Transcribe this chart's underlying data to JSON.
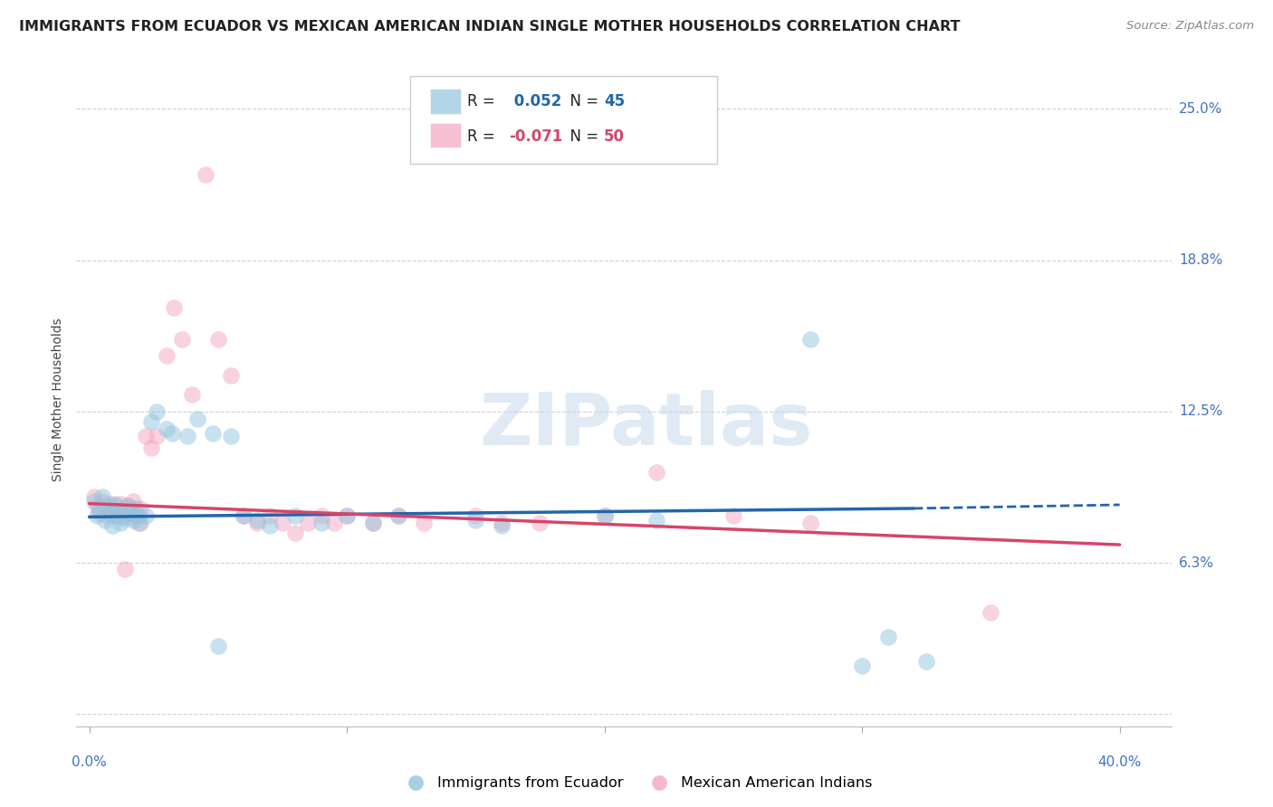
{
  "title": "IMMIGRANTS FROM ECUADOR VS MEXICAN AMERICAN INDIAN SINGLE MOTHER HOUSEHOLDS CORRELATION CHART",
  "source": "Source: ZipAtlas.com",
  "ylabel": "Single Mother Households",
  "ytick_vals": [
    0.0,
    0.0625,
    0.125,
    0.1875,
    0.25
  ],
  "ytick_labels": [
    "",
    "6.3%",
    "12.5%",
    "18.8%",
    "25.0%"
  ],
  "xtick_vals": [
    0.0,
    0.1,
    0.2,
    0.3,
    0.4
  ],
  "xtick_labels": [
    "0.0%",
    "",
    "",
    "",
    "40.0%"
  ],
  "xlim": [
    -0.005,
    0.42
  ],
  "ylim": [
    -0.005,
    0.265
  ],
  "R_blue": 0.052,
  "N_blue": 45,
  "R_pink": -0.071,
  "N_pink": 50,
  "legend_label_blue": "Immigrants from Ecuador",
  "legend_label_pink": "Mexican American Indians",
  "watermark": "ZIPatlas",
  "blue_color": "#92c5de",
  "pink_color": "#f4a6c0",
  "blue_line_color": "#2166ac",
  "pink_line_color": "#d6456a",
  "blue_scatter": [
    [
      0.002,
      0.088
    ],
    [
      0.003,
      0.082
    ],
    [
      0.004,
      0.085
    ],
    [
      0.005,
      0.09
    ],
    [
      0.006,
      0.08
    ],
    [
      0.007,
      0.086
    ],
    [
      0.008,
      0.083
    ],
    [
      0.009,
      0.078
    ],
    [
      0.01,
      0.087
    ],
    [
      0.011,
      0.082
    ],
    [
      0.012,
      0.079
    ],
    [
      0.013,
      0.084
    ],
    [
      0.014,
      0.081
    ],
    [
      0.015,
      0.086
    ],
    [
      0.016,
      0.083
    ],
    [
      0.017,
      0.08
    ],
    [
      0.018,
      0.085
    ],
    [
      0.019,
      0.082
    ],
    [
      0.02,
      0.079
    ],
    [
      0.022,
      0.082
    ],
    [
      0.024,
      0.121
    ],
    [
      0.026,
      0.125
    ],
    [
      0.03,
      0.118
    ],
    [
      0.032,
      0.116
    ],
    [
      0.038,
      0.115
    ],
    [
      0.042,
      0.122
    ],
    [
      0.048,
      0.116
    ],
    [
      0.055,
      0.115
    ],
    [
      0.06,
      0.082
    ],
    [
      0.065,
      0.08
    ],
    [
      0.07,
      0.078
    ],
    [
      0.08,
      0.082
    ],
    [
      0.09,
      0.079
    ],
    [
      0.1,
      0.082
    ],
    [
      0.11,
      0.079
    ],
    [
      0.12,
      0.082
    ],
    [
      0.15,
      0.08
    ],
    [
      0.16,
      0.078
    ],
    [
      0.2,
      0.082
    ],
    [
      0.22,
      0.08
    ],
    [
      0.28,
      0.155
    ],
    [
      0.31,
      0.032
    ],
    [
      0.325,
      0.022
    ],
    [
      0.3,
      0.02
    ],
    [
      0.05,
      0.028
    ]
  ],
  "pink_scatter": [
    [
      0.002,
      0.09
    ],
    [
      0.003,
      0.086
    ],
    [
      0.004,
      0.083
    ],
    [
      0.005,
      0.088
    ],
    [
      0.006,
      0.085
    ],
    [
      0.007,
      0.082
    ],
    [
      0.008,
      0.087
    ],
    [
      0.009,
      0.084
    ],
    [
      0.01,
      0.086
    ],
    [
      0.011,
      0.082
    ],
    [
      0.012,
      0.087
    ],
    [
      0.013,
      0.084
    ],
    [
      0.014,
      0.082
    ],
    [
      0.015,
      0.086
    ],
    [
      0.016,
      0.083
    ],
    [
      0.017,
      0.088
    ],
    [
      0.018,
      0.082
    ],
    [
      0.019,
      0.079
    ],
    [
      0.02,
      0.085
    ],
    [
      0.022,
      0.115
    ],
    [
      0.024,
      0.11
    ],
    [
      0.026,
      0.115
    ],
    [
      0.03,
      0.148
    ],
    [
      0.033,
      0.168
    ],
    [
      0.036,
      0.155
    ],
    [
      0.04,
      0.132
    ],
    [
      0.045,
      0.223
    ],
    [
      0.05,
      0.155
    ],
    [
      0.055,
      0.14
    ],
    [
      0.06,
      0.082
    ],
    [
      0.065,
      0.079
    ],
    [
      0.07,
      0.082
    ],
    [
      0.075,
      0.079
    ],
    [
      0.08,
      0.075
    ],
    [
      0.085,
      0.079
    ],
    [
      0.09,
      0.082
    ],
    [
      0.095,
      0.079
    ],
    [
      0.1,
      0.082
    ],
    [
      0.11,
      0.079
    ],
    [
      0.12,
      0.082
    ],
    [
      0.13,
      0.079
    ],
    [
      0.15,
      0.082
    ],
    [
      0.16,
      0.079
    ],
    [
      0.175,
      0.079
    ],
    [
      0.2,
      0.082
    ],
    [
      0.22,
      0.1
    ],
    [
      0.25,
      0.082
    ],
    [
      0.28,
      0.079
    ],
    [
      0.35,
      0.042
    ],
    [
      0.014,
      0.06
    ]
  ],
  "blue_line": {
    "x0": 0.0,
    "y0": 0.0815,
    "x1": 0.32,
    "y1": 0.085,
    "x1_dash": 0.4,
    "y1_dash": 0.0865
  },
  "pink_line": {
    "x0": 0.0,
    "y0": 0.087,
    "x1": 0.4,
    "y1": 0.07
  },
  "background_color": "#ffffff",
  "grid_color": "#d0d0d0",
  "title_fontsize": 11.5,
  "source_fontsize": 9.5,
  "axis_label_color": "#4472c4",
  "scatter_size": 180,
  "scatter_alpha": 0.5
}
